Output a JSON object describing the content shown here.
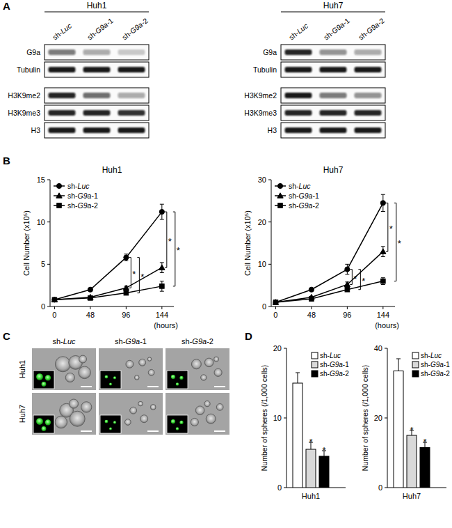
{
  "panel_labels": [
    "A",
    "B",
    "C",
    "D"
  ],
  "blots": [
    {
      "title": "Huh1",
      "lanes": [
        "sh-Luc",
        "sh-G9a-1",
        "sh-G9a-2"
      ],
      "rows": [
        {
          "label": "G9a",
          "band_intensity": [
            0.55,
            0.35,
            0.2
          ]
        },
        {
          "label": "Tubulin",
          "band_intensity": [
            0.95,
            0.95,
            0.95
          ]
        },
        {
          "label": "H3K9me2",
          "band_intensity": [
            0.9,
            0.6,
            0.35
          ]
        },
        {
          "label": "H3K9me3",
          "band_intensity": [
            0.9,
            0.9,
            0.85
          ]
        },
        {
          "label": "H3",
          "band_intensity": [
            0.95,
            0.95,
            0.95
          ]
        }
      ]
    },
    {
      "title": "Huh7",
      "lanes": [
        "sh-Luc",
        "sh-G9a-1",
        "sh-G9a-2"
      ],
      "rows": [
        {
          "label": "G9a",
          "band_intensity": [
            0.9,
            0.45,
            0.35
          ]
        },
        {
          "label": "Tubulin",
          "band_intensity": [
            0.95,
            0.95,
            0.95
          ]
        },
        {
          "label": "H3K9me2",
          "band_intensity": [
            0.95,
            0.55,
            0.45
          ]
        },
        {
          "label": "H3K9me3",
          "band_intensity": [
            0.9,
            0.9,
            0.9
          ]
        },
        {
          "label": "H3",
          "band_intensity": [
            0.95,
            0.95,
            0.95
          ]
        }
      ]
    }
  ],
  "micrographs": {
    "columns": [
      "sh-Luc",
      "sh-G9a-1",
      "sh-G9a-2"
    ],
    "rows": [
      "Huh1",
      "Huh7"
    ]
  },
  "chart_data": [
    {
      "type": "line",
      "title": "Huh1",
      "xlabel": "(hours)",
      "ylabel": "Cell Number (x10⁵)",
      "x": [
        0,
        48,
        96,
        144
      ],
      "xlim": [
        -6,
        160
      ],
      "xticks": [
        0,
        48,
        96,
        144
      ],
      "ylim": [
        0,
        15
      ],
      "yticks": [
        0,
        5,
        10,
        15
      ],
      "legend": "upper left",
      "series": [
        {
          "name": "sh-Luc",
          "color": "#000000",
          "marker": "circle",
          "values": [
            0.8,
            2.0,
            5.8,
            11.2
          ],
          "errors": [
            0.05,
            0.1,
            0.4,
            0.9
          ]
        },
        {
          "name": "sh-G9a-1",
          "color": "#000000",
          "marker": "triangle",
          "values": [
            0.8,
            1.1,
            2.2,
            4.6
          ],
          "errors": [
            0.05,
            0.1,
            0.2,
            0.6
          ]
        },
        {
          "name": "sh-G9a-2",
          "color": "#000000",
          "marker": "square",
          "values": [
            0.8,
            1.0,
            1.6,
            2.4
          ],
          "errors": [
            0.05,
            0.1,
            0.15,
            0.6
          ]
        }
      ],
      "annotations": [
        {
          "x": 96,
          "series": [
            0,
            1
          ],
          "text": "*"
        },
        {
          "x": 96,
          "series": [
            0,
            2
          ],
          "text": "*"
        },
        {
          "x": 144,
          "series": [
            0,
            1
          ],
          "text": "*"
        },
        {
          "x": 144,
          "series": [
            0,
            2
          ],
          "text": "*"
        }
      ]
    },
    {
      "type": "line",
      "title": "Huh7",
      "xlabel": "(hours)",
      "ylabel": "Cell Number (x10⁵)",
      "x": [
        0,
        48,
        96,
        144
      ],
      "xlim": [
        -6,
        160
      ],
      "xticks": [
        0,
        48,
        96,
        144
      ],
      "ylim": [
        0,
        30
      ],
      "yticks": [
        0,
        10,
        20,
        30
      ],
      "legend": "upper left",
      "series": [
        {
          "name": "sh-Luc",
          "color": "#000000",
          "marker": "circle",
          "values": [
            1.0,
            4.0,
            8.8,
            24.5
          ],
          "errors": [
            0.1,
            0.3,
            1.2,
            2.0
          ]
        },
        {
          "name": "sh-G9a-1",
          "color": "#000000",
          "marker": "triangle",
          "values": [
            1.0,
            2.2,
            5.2,
            13.0
          ],
          "errors": [
            0.1,
            0.2,
            0.6,
            1.2
          ]
        },
        {
          "name": "sh-G9a-2",
          "color": "#000000",
          "marker": "square",
          "values": [
            1.0,
            1.8,
            4.0,
            6.0
          ],
          "errors": [
            0.1,
            0.2,
            0.4,
            0.8
          ]
        }
      ],
      "annotations": [
        {
          "x": 96,
          "series": [
            0,
            1
          ],
          "text": "*"
        },
        {
          "x": 96,
          "series": [
            0,
            2
          ],
          "text": "*"
        },
        {
          "x": 144,
          "series": [
            0,
            1
          ],
          "text": "*"
        },
        {
          "x": 144,
          "series": [
            0,
            2
          ],
          "text": "*"
        }
      ]
    },
    {
      "type": "bar",
      "xlabel": "Huh1",
      "ylabel": "Number of spheres (/1,000 cells)",
      "categories": [
        "sh-Luc",
        "sh-G9a-1",
        "sh-G9a-2"
      ],
      "values": [
        15,
        5.5,
        4.5
      ],
      "errors": [
        1.5,
        1.0,
        0.8
      ],
      "colors": [
        "#ffffff",
        "#d9d9d9",
        "#000000"
      ],
      "ylim": [
        0,
        20
      ],
      "yticks": [
        0,
        10,
        20
      ],
      "legend": "upper right",
      "tick_labels": "y",
      "annotations": [
        {
          "index": 1,
          "text": "*"
        },
        {
          "index": 2,
          "text": "*"
        }
      ]
    },
    {
      "type": "bar",
      "xlabel": "Huh7",
      "ylabel": "Number of spheres (/1,000 cells)",
      "categories": [
        "sh-Luc",
        "sh-G9a-1",
        "sh-G9a-2"
      ],
      "values": [
        33.5,
        15,
        11.5
      ],
      "errors": [
        3.5,
        1.5,
        1.5
      ],
      "colors": [
        "#ffffff",
        "#d9d9d9",
        "#000000"
      ],
      "ylim": [
        0,
        40
      ],
      "yticks": [
        0,
        20,
        40
      ],
      "legend": "upper right",
      "tick_labels": "y",
      "annotations": [
        {
          "index": 1,
          "text": "*"
        },
        {
          "index": 2,
          "text": "*"
        }
      ]
    }
  ]
}
